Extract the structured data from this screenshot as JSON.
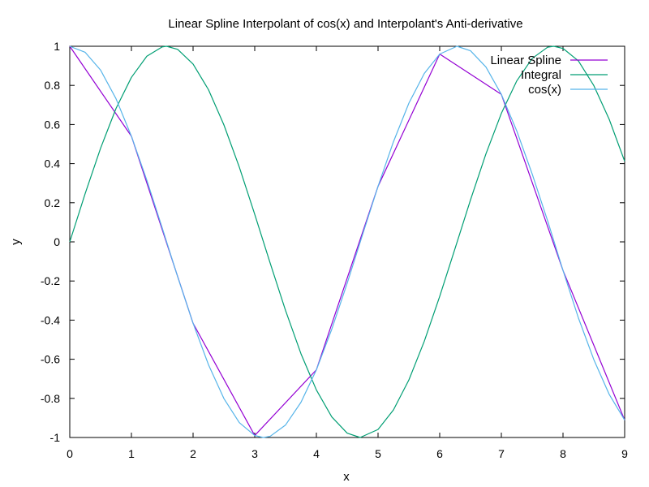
{
  "chart_data": {
    "type": "line",
    "title": "Linear Spline Interpolant of cos(x) and Interpolant's Anti-derivative",
    "xlabel": "x",
    "ylabel": "y",
    "xlim": [
      0,
      9
    ],
    "ylim": [
      -1,
      1
    ],
    "x_ticks": [
      0,
      1,
      2,
      3,
      4,
      5,
      6,
      7,
      8,
      9
    ],
    "x_tick_labels": [
      "0",
      "1",
      "2",
      "3",
      "4",
      "5",
      "6",
      "7",
      "8",
      "9"
    ],
    "y_ticks": [
      -1,
      -0.8,
      -0.6,
      -0.4,
      -0.2,
      0,
      0.2,
      0.4,
      0.6,
      0.8,
      1
    ],
    "y_tick_labels": [
      "-1",
      "-0.8",
      "-0.6",
      "-0.4",
      "-0.2",
      "0",
      "0.2",
      "0.4",
      "0.6",
      "0.8",
      "1"
    ],
    "grid": false,
    "legend_position": "top-right",
    "series": [
      {
        "name": "Linear Spline",
        "color": "#9400d3",
        "x": [
          0,
          1,
          2,
          3,
          4,
          5,
          6,
          7,
          8,
          9
        ],
        "y": [
          1,
          0.54,
          -0.416,
          -0.99,
          -0.654,
          0.284,
          0.96,
          0.754,
          -0.146,
          -0.911
        ]
      },
      {
        "name": "Integral",
        "color": "#009e73",
        "x": [
          0,
          0.25,
          0.5,
          0.75,
          1,
          1.25,
          1.5,
          1.57,
          1.75,
          2,
          2.25,
          2.5,
          2.75,
          3,
          3.25,
          3.5,
          3.75,
          4,
          4.25,
          4.5,
          4.71,
          5,
          5.25,
          5.5,
          5.75,
          6,
          6.25,
          6.5,
          6.75,
          7,
          7.25,
          7.5,
          7.75,
          7.85,
          8,
          8.25,
          8.5,
          8.75,
          9
        ],
        "y": [
          0,
          0.247,
          0.479,
          0.682,
          0.841,
          0.949,
          0.997,
          1.0,
          0.984,
          0.909,
          0.778,
          0.598,
          0.382,
          0.141,
          -0.108,
          -0.351,
          -0.572,
          -0.757,
          -0.895,
          -0.978,
          -1.0,
          -0.959,
          -0.859,
          -0.706,
          -0.508,
          -0.279,
          -0.033,
          0.215,
          0.45,
          0.657,
          0.823,
          0.938,
          0.995,
          1.0,
          0.989,
          0.925,
          0.799,
          0.626,
          0.412
        ]
      },
      {
        "name": "cos(x)",
        "color": "#56b4e9",
        "x": [
          0,
          0.25,
          0.5,
          0.75,
          1,
          1.25,
          1.5,
          1.75,
          2,
          2.25,
          2.5,
          2.75,
          3,
          3.14,
          3.25,
          3.5,
          3.75,
          4,
          4.25,
          4.5,
          4.75,
          5,
          5.25,
          5.5,
          5.75,
          6,
          6.28,
          6.5,
          6.75,
          7,
          7.25,
          7.5,
          7.75,
          8,
          8.25,
          8.5,
          8.75,
          9
        ],
        "y": [
          1,
          0.969,
          0.878,
          0.732,
          0.54,
          0.315,
          0.071,
          -0.178,
          -0.416,
          -0.628,
          -0.801,
          -0.924,
          -0.99,
          -1.0,
          -0.994,
          -0.936,
          -0.82,
          -0.654,
          -0.446,
          -0.211,
          0.038,
          0.284,
          0.512,
          0.709,
          0.861,
          0.96,
          1.0,
          0.977,
          0.894,
          0.754,
          0.567,
          0.347,
          0.108,
          -0.146,
          -0.389,
          -0.602,
          -0.78,
          -0.911
        ]
      }
    ]
  }
}
